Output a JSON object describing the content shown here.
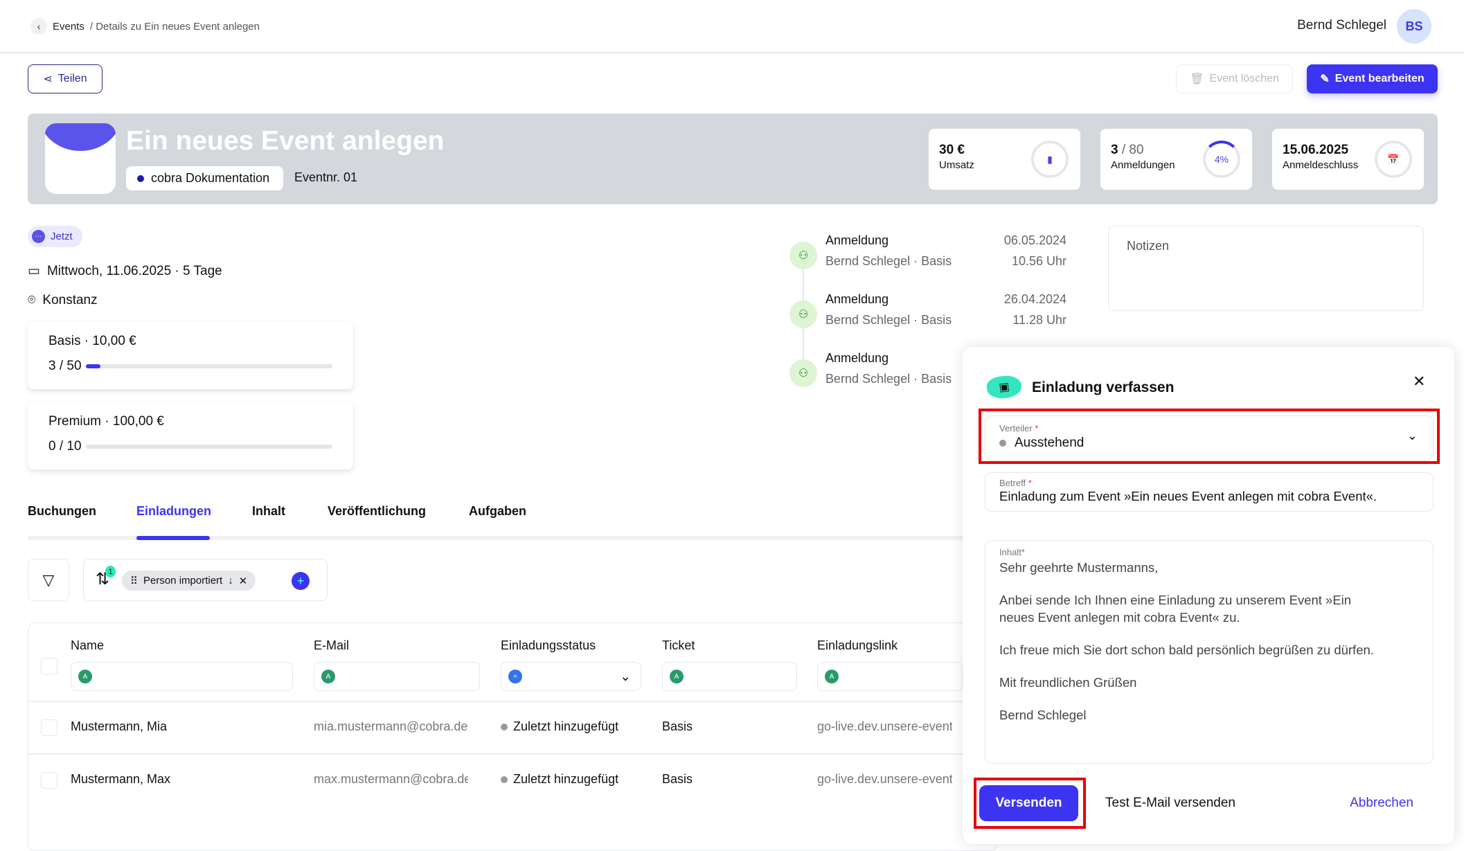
{
  "header": {
    "breadcrumb_root": "Events",
    "breadcrumb_current": "/ Details zu Ein neues Event anlegen",
    "user_name": "Bernd Schlegel",
    "avatar_initials": "BS"
  },
  "toolbar": {
    "share": "Teilen",
    "delete": "Event löschen",
    "edit": "Event bearbeiten"
  },
  "event": {
    "title": "Ein neues Event anlegen",
    "category": "cobra Dokumentation",
    "event_number": "Eventnr. 01",
    "status_badge": "Jetzt",
    "date": "Mittwoch, 11.06.2025 · 5 Tage",
    "location": "Konstanz"
  },
  "stats": [
    {
      "value": "30 €",
      "label": "Umsatz"
    },
    {
      "value": "3",
      "total": "/ 80",
      "label": "Anmeldungen",
      "percent": "4%"
    },
    {
      "value": "15.06.2025",
      "label": "Anmeldeschluss"
    }
  ],
  "tickets": [
    {
      "title": "Basis · 10,00 €",
      "count": "3 / 50",
      "fill": 0.06
    },
    {
      "title": "Premium · 100,00 €",
      "count": "0 / 10",
      "fill": 0
    }
  ],
  "timeline": [
    {
      "title": "Anmeldung",
      "sub": "Bernd Schlegel · Basis",
      "date": "06.05.2024",
      "time": "10.56 Uhr"
    },
    {
      "title": "Anmeldung",
      "sub": "Bernd Schlegel · Basis",
      "date": "26.04.2024",
      "time": "11.28 Uhr"
    },
    {
      "title": "Anmeldung",
      "sub": "Bernd Schlegel · Basis"
    }
  ],
  "notes_placeholder": "Notizen",
  "tabs": [
    "Buchungen",
    "Einladungen",
    "Inhalt",
    "Veröffentlichung",
    "Aufgaben"
  ],
  "sort": {
    "count": "1",
    "chip": "Person importiert"
  },
  "table": {
    "headers": [
      "Name",
      "E-Mail",
      "Einladungsstatus",
      "Ticket",
      "Einladungslink"
    ],
    "rows": [
      {
        "name": "Mustermann, Mia",
        "email": "mia.mustermann@cobra.de",
        "status": "Zuletzt hinzugefügt",
        "ticket": "Basis",
        "link": "go-live.dev.unsere-events"
      },
      {
        "name": "Mustermann, Max",
        "email": "max.mustermann@cobra.de",
        "status": "Zuletzt hinzugefügt",
        "ticket": "Basis",
        "link": "go-live.dev.unsere-events"
      }
    ]
  },
  "modal": {
    "title": "Einladung verfassen",
    "verteiler_label": "Verteiler",
    "verteiler_value": "Ausstehend",
    "betreff_label": "Betreff",
    "betreff_value": "Einladung zum Event »Ein neues Event anlegen mit cobra Event«.",
    "inhalt_label": "Inhalt*",
    "body": [
      "Sehr geehrte Mustermanns,",
      "Anbei sende Ich Ihnen eine Einladung zu unserem Event »Ein neues Event anlegen mit cobra Event« zu.",
      "Ich freue mich Sie dort schon bald persönlich begrüßen zu dürfen.",
      "Mit freundlichen Grüßen",
      "Bernd Schlegel"
    ],
    "send": "Versenden",
    "test": "Test E-Mail versenden",
    "cancel": "Abbrechen",
    "required_mark": "*"
  },
  "colors": {
    "accent": "#3c34f0",
    "highlight": "#e8000b",
    "banner": "#d4d7dc"
  }
}
